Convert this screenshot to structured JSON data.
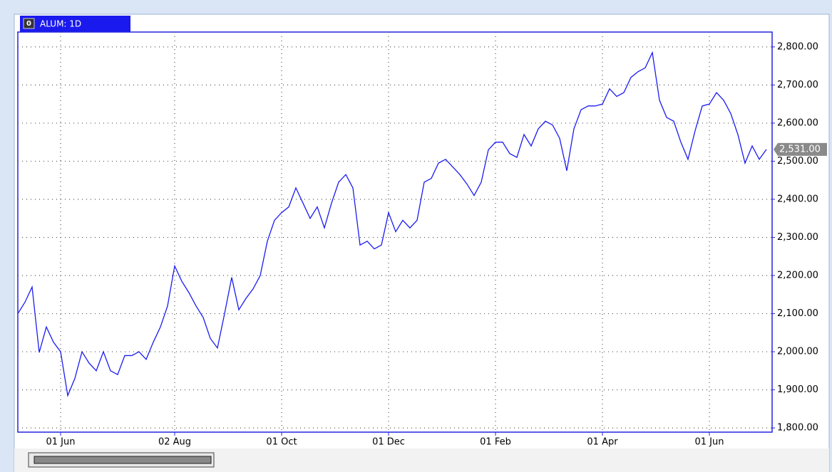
{
  "tab_icon": "0",
  "tab_label": "ALUM: 1D",
  "chart_data": {
    "type": "line",
    "categories": [
      null,
      null,
      null,
      null,
      null,
      null,
      "01 Jun",
      null,
      null,
      null,
      null,
      null,
      null,
      null,
      null,
      null,
      null,
      null,
      null,
      null,
      null,
      null,
      "02 Aug",
      null,
      null,
      null,
      null,
      null,
      null,
      null,
      null,
      null,
      null,
      null,
      null,
      null,
      null,
      "01 Oct",
      null,
      null,
      null,
      null,
      null,
      null,
      null,
      null,
      null,
      null,
      null,
      null,
      null,
      null,
      "01 Dec",
      null,
      null,
      null,
      null,
      null,
      null,
      null,
      null,
      null,
      null,
      null,
      null,
      null,
      null,
      "01 Feb",
      null,
      null,
      null,
      null,
      null,
      null,
      null,
      null,
      null,
      null,
      null,
      null,
      null,
      null,
      "01 Apr",
      null,
      null,
      null,
      null,
      null,
      null,
      null,
      null,
      null,
      null,
      null,
      null,
      null,
      null,
      "01 Jun",
      null,
      null,
      null,
      null,
      null,
      null,
      null,
      null
    ],
    "series": [
      {
        "name": "ALUM",
        "color": "#1c1cf0",
        "values": [
          2100,
          2130,
          2170,
          1998,
          2065,
          2025,
          2000,
          1885,
          1930,
          2000,
          1970,
          1950,
          2000,
          1950,
          1940,
          1990,
          1990,
          2000,
          1980,
          2025,
          2065,
          2120,
          2225,
          2185,
          2155,
          2120,
          2090,
          2035,
          2010,
          2100,
          2195,
          2110,
          2140,
          2165,
          2200,
          2290,
          2345,
          2365,
          2380,
          2430,
          2390,
          2350,
          2380,
          2325,
          2390,
          2445,
          2465,
          2430,
          2280,
          2290,
          2270,
          2280,
          2365,
          2315,
          2345,
          2325,
          2345,
          2445,
          2455,
          2495,
          2505,
          2485,
          2465,
          2440,
          2410,
          2445,
          2530,
          2550,
          2550,
          2520,
          2510,
          2570,
          2540,
          2585,
          2605,
          2595,
          2560,
          2475,
          2585,
          2635,
          2645,
          2645,
          2650,
          2690,
          2670,
          2680,
          2720,
          2735,
          2745,
          2785,
          2660,
          2615,
          2605,
          2550,
          2505,
          2580,
          2645,
          2650,
          2680,
          2660,
          2625,
          2570,
          2495,
          2540,
          2505,
          2531
        ],
        "value_labels": [
          null,
          null,
          null,
          null,
          null,
          null,
          null,
          null,
          null,
          null,
          null,
          null,
          null,
          null,
          null,
          null,
          null,
          null,
          null,
          null,
          null,
          null,
          null,
          null,
          null,
          null,
          null,
          null,
          null,
          null,
          null,
          null,
          null,
          null,
          null,
          null,
          null,
          null,
          null,
          null,
          null,
          null,
          null,
          null,
          null,
          null,
          null,
          null,
          null,
          null,
          null,
          null,
          null,
          null,
          null,
          null,
          null,
          null,
          null,
          null,
          null,
          null,
          null,
          null,
          null,
          null,
          null,
          null,
          null,
          null,
          null,
          null,
          null,
          null,
          null,
          null,
          null,
          null,
          null,
          null,
          null,
          null,
          null,
          null,
          null,
          null,
          null,
          null,
          null,
          null,
          null,
          null,
          null,
          null,
          null,
          null,
          null,
          null,
          null,
          null,
          null,
          null,
          null,
          null,
          null,
          "2,531.00"
        ]
      }
    ],
    "ylim": [
      1789,
      2839
    ],
    "yticks": [
      {
        "value": 1800,
        "label": "1,800.00"
      },
      {
        "value": 1900,
        "label": "1,900.00"
      },
      {
        "value": 2000,
        "label": "2,000.00"
      },
      {
        "value": 2100,
        "label": "2,100.00"
      },
      {
        "value": 2200,
        "label": "2,200.00"
      },
      {
        "value": 2300,
        "label": "2,300.00"
      },
      {
        "value": 2400,
        "label": "2,400.00"
      },
      {
        "value": 2500,
        "label": "2,500.00"
      },
      {
        "value": 2600,
        "label": "2,600.00"
      },
      {
        "value": 2700,
        "label": "2,700.00"
      },
      {
        "value": 2800,
        "label": "2,800.00"
      }
    ],
    "grid": true
  }
}
